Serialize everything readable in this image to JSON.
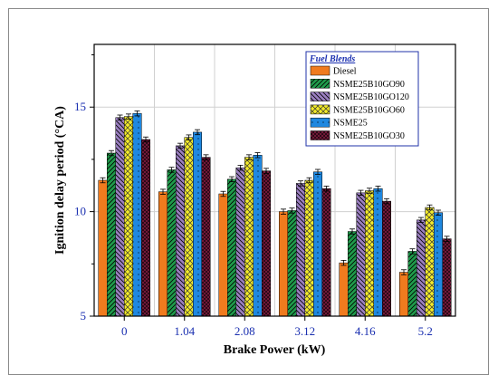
{
  "chart_data": {
    "type": "bar",
    "xlabel": "Brake Power (kW)",
    "ylabel": "Ignition delay period (°CA)",
    "categories": [
      "0",
      "1.04",
      "2.08",
      "3.12",
      "4.16",
      "5.2"
    ],
    "ylim": [
      5,
      18
    ],
    "yticks": [
      "5",
      "10",
      "15"
    ],
    "ytick_values": [
      5,
      10,
      15
    ],
    "grid": true,
    "legend_title": "Fuel Blends",
    "legend_position": "top-right",
    "series": [
      {
        "name": "Diesel",
        "color": "#f07b1e",
        "pattern": "solid",
        "values": [
          11.5,
          10.95,
          10.85,
          10.0,
          7.55,
          7.1
        ],
        "errors": [
          0.12,
          0.12,
          0.12,
          0.12,
          0.12,
          0.12
        ]
      },
      {
        "name": "NSME25B10GO90",
        "color": "#1f9b4b",
        "pattern": "diag-right",
        "values": [
          12.8,
          12.0,
          11.55,
          10.05,
          9.05,
          8.1
        ],
        "errors": [
          0.12,
          0.12,
          0.12,
          0.12,
          0.12,
          0.12
        ]
      },
      {
        "name": "NSME25B10GO120",
        "color": "#9b7fc1",
        "pattern": "diag-left",
        "values": [
          14.5,
          13.15,
          12.1,
          11.35,
          10.9,
          9.6
        ],
        "errors": [
          0.12,
          0.12,
          0.12,
          0.12,
          0.12,
          0.12
        ]
      },
      {
        "name": "NSME25B10GO60",
        "color": "#f2ea2a",
        "pattern": "cross",
        "values": [
          14.55,
          13.55,
          12.6,
          11.5,
          11.0,
          10.2
        ],
        "errors": [
          0.12,
          0.12,
          0.12,
          0.12,
          0.12,
          0.12
        ]
      },
      {
        "name": "NSME25",
        "color": "#1f88e0",
        "pattern": "dots",
        "values": [
          14.7,
          13.8,
          12.7,
          11.9,
          11.1,
          9.95
        ],
        "errors": [
          0.12,
          0.12,
          0.12,
          0.12,
          0.12,
          0.12
        ]
      },
      {
        "name": "NSME25B10GO30",
        "color": "#7a1a3d",
        "pattern": "crosshatch",
        "values": [
          13.45,
          12.6,
          11.95,
          11.1,
          10.5,
          8.7
        ],
        "errors": [
          0.12,
          0.12,
          0.12,
          0.12,
          0.12,
          0.12
        ]
      }
    ]
  }
}
